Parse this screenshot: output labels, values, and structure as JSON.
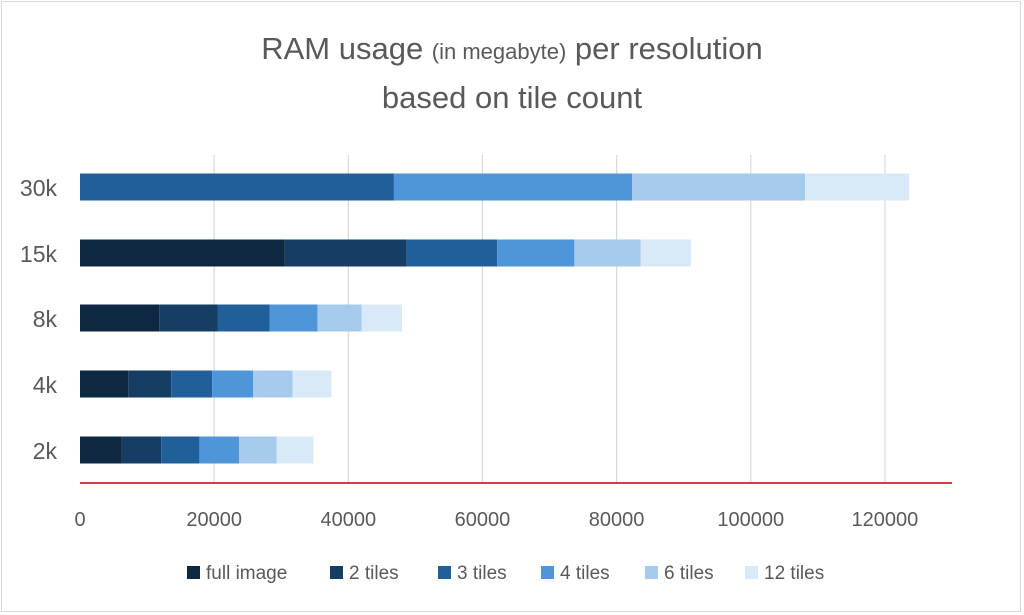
{
  "chart_data": {
    "type": "bar",
    "orientation": "horizontal",
    "stacked": true,
    "title": {
      "line1_main": "RAM usage ",
      "line1_paren": "(in megabyte)",
      "line1_end": " per resolution",
      "line2": "based on tile count"
    },
    "categories": [
      "30k",
      "15k",
      "8k",
      "4k",
      "2k"
    ],
    "series": [
      {
        "name": "full image",
        "color": "#0e2841",
        "values": [
          0,
          30500,
          11800,
          7200,
          6200
        ]
      },
      {
        "name": "2 tiles",
        "color": "#163e64",
        "values": [
          0,
          18100,
          8700,
          6400,
          5900
        ]
      },
      {
        "name": "3 tiles",
        "color": "#215f9a",
        "values": [
          46800,
          13600,
          7800,
          6100,
          5700
        ]
      },
      {
        "name": "4 tiles",
        "color": "#4e95d9",
        "values": [
          35500,
          11500,
          7100,
          6100,
          5900
        ]
      },
      {
        "name": "6 tiles",
        "color": "#a6caec",
        "values": [
          25800,
          9900,
          6600,
          5900,
          5600
        ]
      },
      {
        "name": "12 tiles",
        "color": "#dae9f8",
        "values": [
          15500,
          7500,
          6000,
          5800,
          5500
        ]
      }
    ],
    "xlim": [
      0,
      130000
    ],
    "x_ticks": [
      0,
      20000,
      40000,
      60000,
      80000,
      100000,
      120000
    ],
    "x_tick_labels": [
      "0",
      "20000",
      "40000",
      "60000",
      "80000",
      "100000",
      "120000"
    ],
    "grid": "vertical",
    "legend": "bottom",
    "axis_line_color": "#c00000"
  }
}
